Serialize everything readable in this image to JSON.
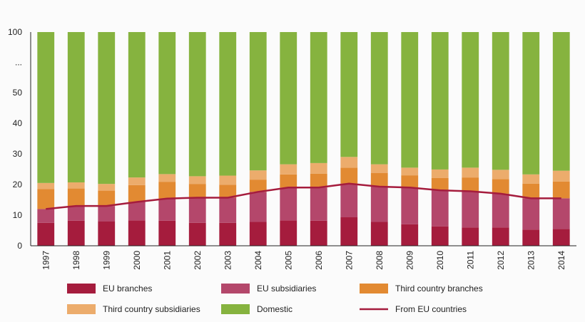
{
  "chart_data": {
    "type": "bar",
    "stacked": true,
    "categories": [
      "1997",
      "1998",
      "1999",
      "2000",
      "2001",
      "2002",
      "2003",
      "2004",
      "2005",
      "2006",
      "2007",
      "2008",
      "2009",
      "2010",
      "2011",
      "2012",
      "2013",
      "2014"
    ],
    "y_tick_labels": [
      "0",
      "10",
      "20",
      "30",
      "40",
      "50",
      "...",
      "100"
    ],
    "series": [
      {
        "name": "EU branches",
        "color": "#a51c3d",
        "values": [
          7.5,
          8.2,
          8.0,
          8.3,
          8.2,
          7.5,
          7.5,
          7.8,
          8.3,
          8.2,
          9.3,
          7.8,
          7.0,
          6.3,
          6.0,
          6.0,
          5.3,
          5.5
        ]
      },
      {
        "name": "EU subsidiaries",
        "color": "#b4476b",
        "values": [
          4.5,
          4.7,
          5.0,
          6.0,
          7.2,
          8.2,
          8.2,
          9.8,
          10.7,
          10.8,
          11.0,
          11.5,
          12.0,
          11.8,
          11.8,
          11.0,
          10.2,
          10.0
        ]
      },
      {
        "name": "Third country branches",
        "color": "#e28a32",
        "values": [
          6.5,
          5.8,
          5.0,
          5.5,
          5.5,
          4.5,
          4.2,
          4.0,
          4.3,
          4.5,
          5.2,
          4.5,
          4.0,
          4.0,
          4.5,
          4.8,
          4.8,
          5.5
        ]
      },
      {
        "name": "Third country subsidiaries",
        "color": "#ecac6c",
        "values": [
          2.0,
          2.0,
          2.2,
          2.5,
          2.5,
          2.5,
          3.0,
          3.0,
          3.3,
          3.5,
          3.5,
          2.8,
          2.5,
          2.8,
          3.2,
          3.0,
          3.0,
          3.5
        ]
      },
      {
        "name": "Domestic",
        "color": "#86b33f",
        "values": [
          79.5,
          79.3,
          79.8,
          77.7,
          76.6,
          77.3,
          77.1,
          75.4,
          73.4,
          73.0,
          71.0,
          73.4,
          74.5,
          75.1,
          74.5,
          75.2,
          76.7,
          75.5
        ]
      }
    ],
    "line_series": {
      "name": "From EU countries",
      "color": "#a51c3d",
      "values": [
        12.0,
        13.0,
        13.0,
        14.3,
        15.4,
        15.7,
        15.7,
        17.6,
        19.0,
        19.0,
        20.3,
        19.3,
        19.0,
        18.1,
        17.8,
        17.0,
        15.5,
        15.5
      ]
    },
    "ylim": [
      0,
      100
    ],
    "legend_position": "bottom",
    "grid": false
  }
}
